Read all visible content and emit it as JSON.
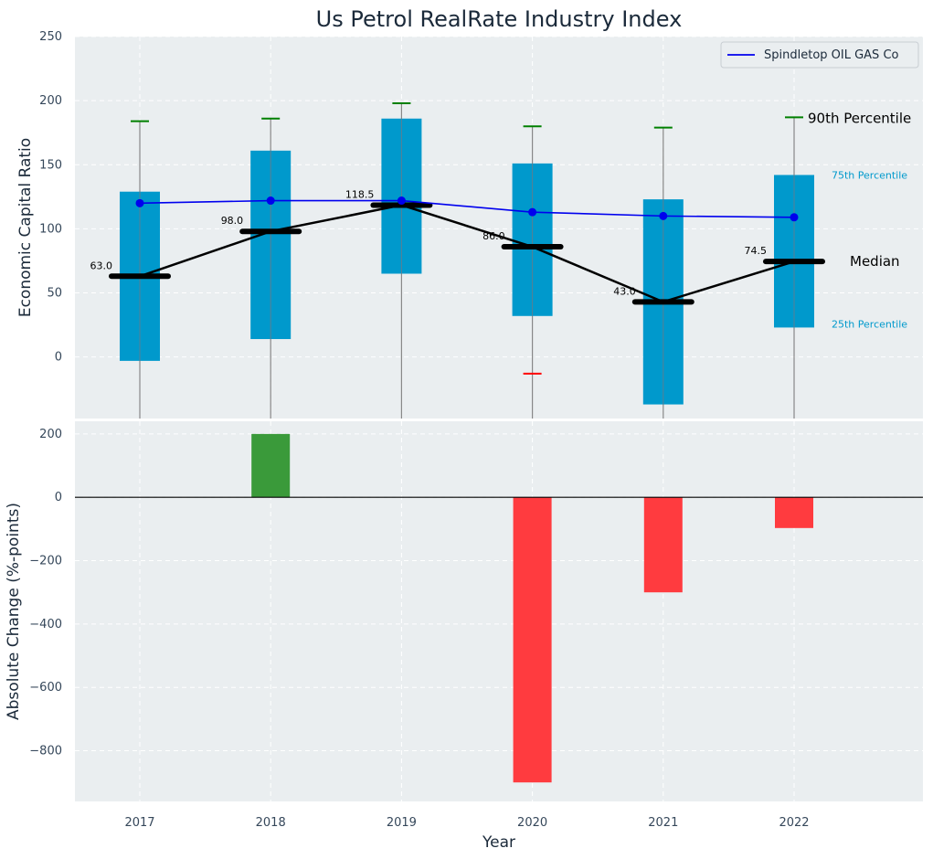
{
  "title": "Us Petrol RealRate Industry Index",
  "colors": {
    "box": "#0099cc",
    "line": "#0000ee",
    "median": "#000000",
    "whisker_top": "#008000",
    "whisker_low": "#ff0000",
    "bar_pos": "#3a9a3a",
    "bar_neg": "#ff3b3f",
    "panel_bg": "#eaeef0"
  },
  "chart_data": [
    {
      "type": "box",
      "ylabel": "Economic Capital Ratio",
      "ylim": [
        -48,
        250
      ],
      "yticks": [
        0,
        50,
        100,
        150,
        200,
        250
      ],
      "categories": [
        "2017",
        "2018",
        "2019",
        "2020",
        "2021",
        "2022"
      ],
      "p25": [
        -3,
        14,
        65,
        32,
        -37,
        23
      ],
      "p75": [
        129,
        161,
        186,
        151,
        123,
        142
      ],
      "median": [
        63.0,
        98.0,
        118.5,
        86.0,
        43.0,
        74.5
      ],
      "median_labels": [
        "63.0",
        "98.0",
        "118.5",
        "86.0",
        "43.0",
        "74.5"
      ],
      "whisker_low": [
        null,
        null,
        null,
        -13,
        null,
        null
      ],
      "p90": [
        184,
        186,
        198,
        180,
        179,
        187
      ],
      "series": [
        {
          "name": "Spindletop OIL GAS Co",
          "values": [
            120,
            122,
            122,
            113,
            110,
            109
          ]
        }
      ],
      "legend_position": "top-right",
      "annotations": {
        "p90": "90th Percentile",
        "p75": "75th Percentile",
        "median": "Median",
        "p25": "25th Percentile"
      }
    },
    {
      "type": "bar",
      "xlabel": "Year",
      "ylabel": "Absolute Change (%-points)",
      "ylim": [
        -960,
        240
      ],
      "yticks": [
        200,
        0,
        -200,
        -400,
        -600,
        -800
      ],
      "ytick_labels": [
        "200",
        "0",
        "−200",
        "−400",
        "−600",
        "−800"
      ],
      "categories": [
        "2017",
        "2018",
        "2019",
        "2020",
        "2021",
        "2022"
      ],
      "values": [
        0,
        200,
        0,
        -900,
        -300,
        -97
      ]
    }
  ]
}
